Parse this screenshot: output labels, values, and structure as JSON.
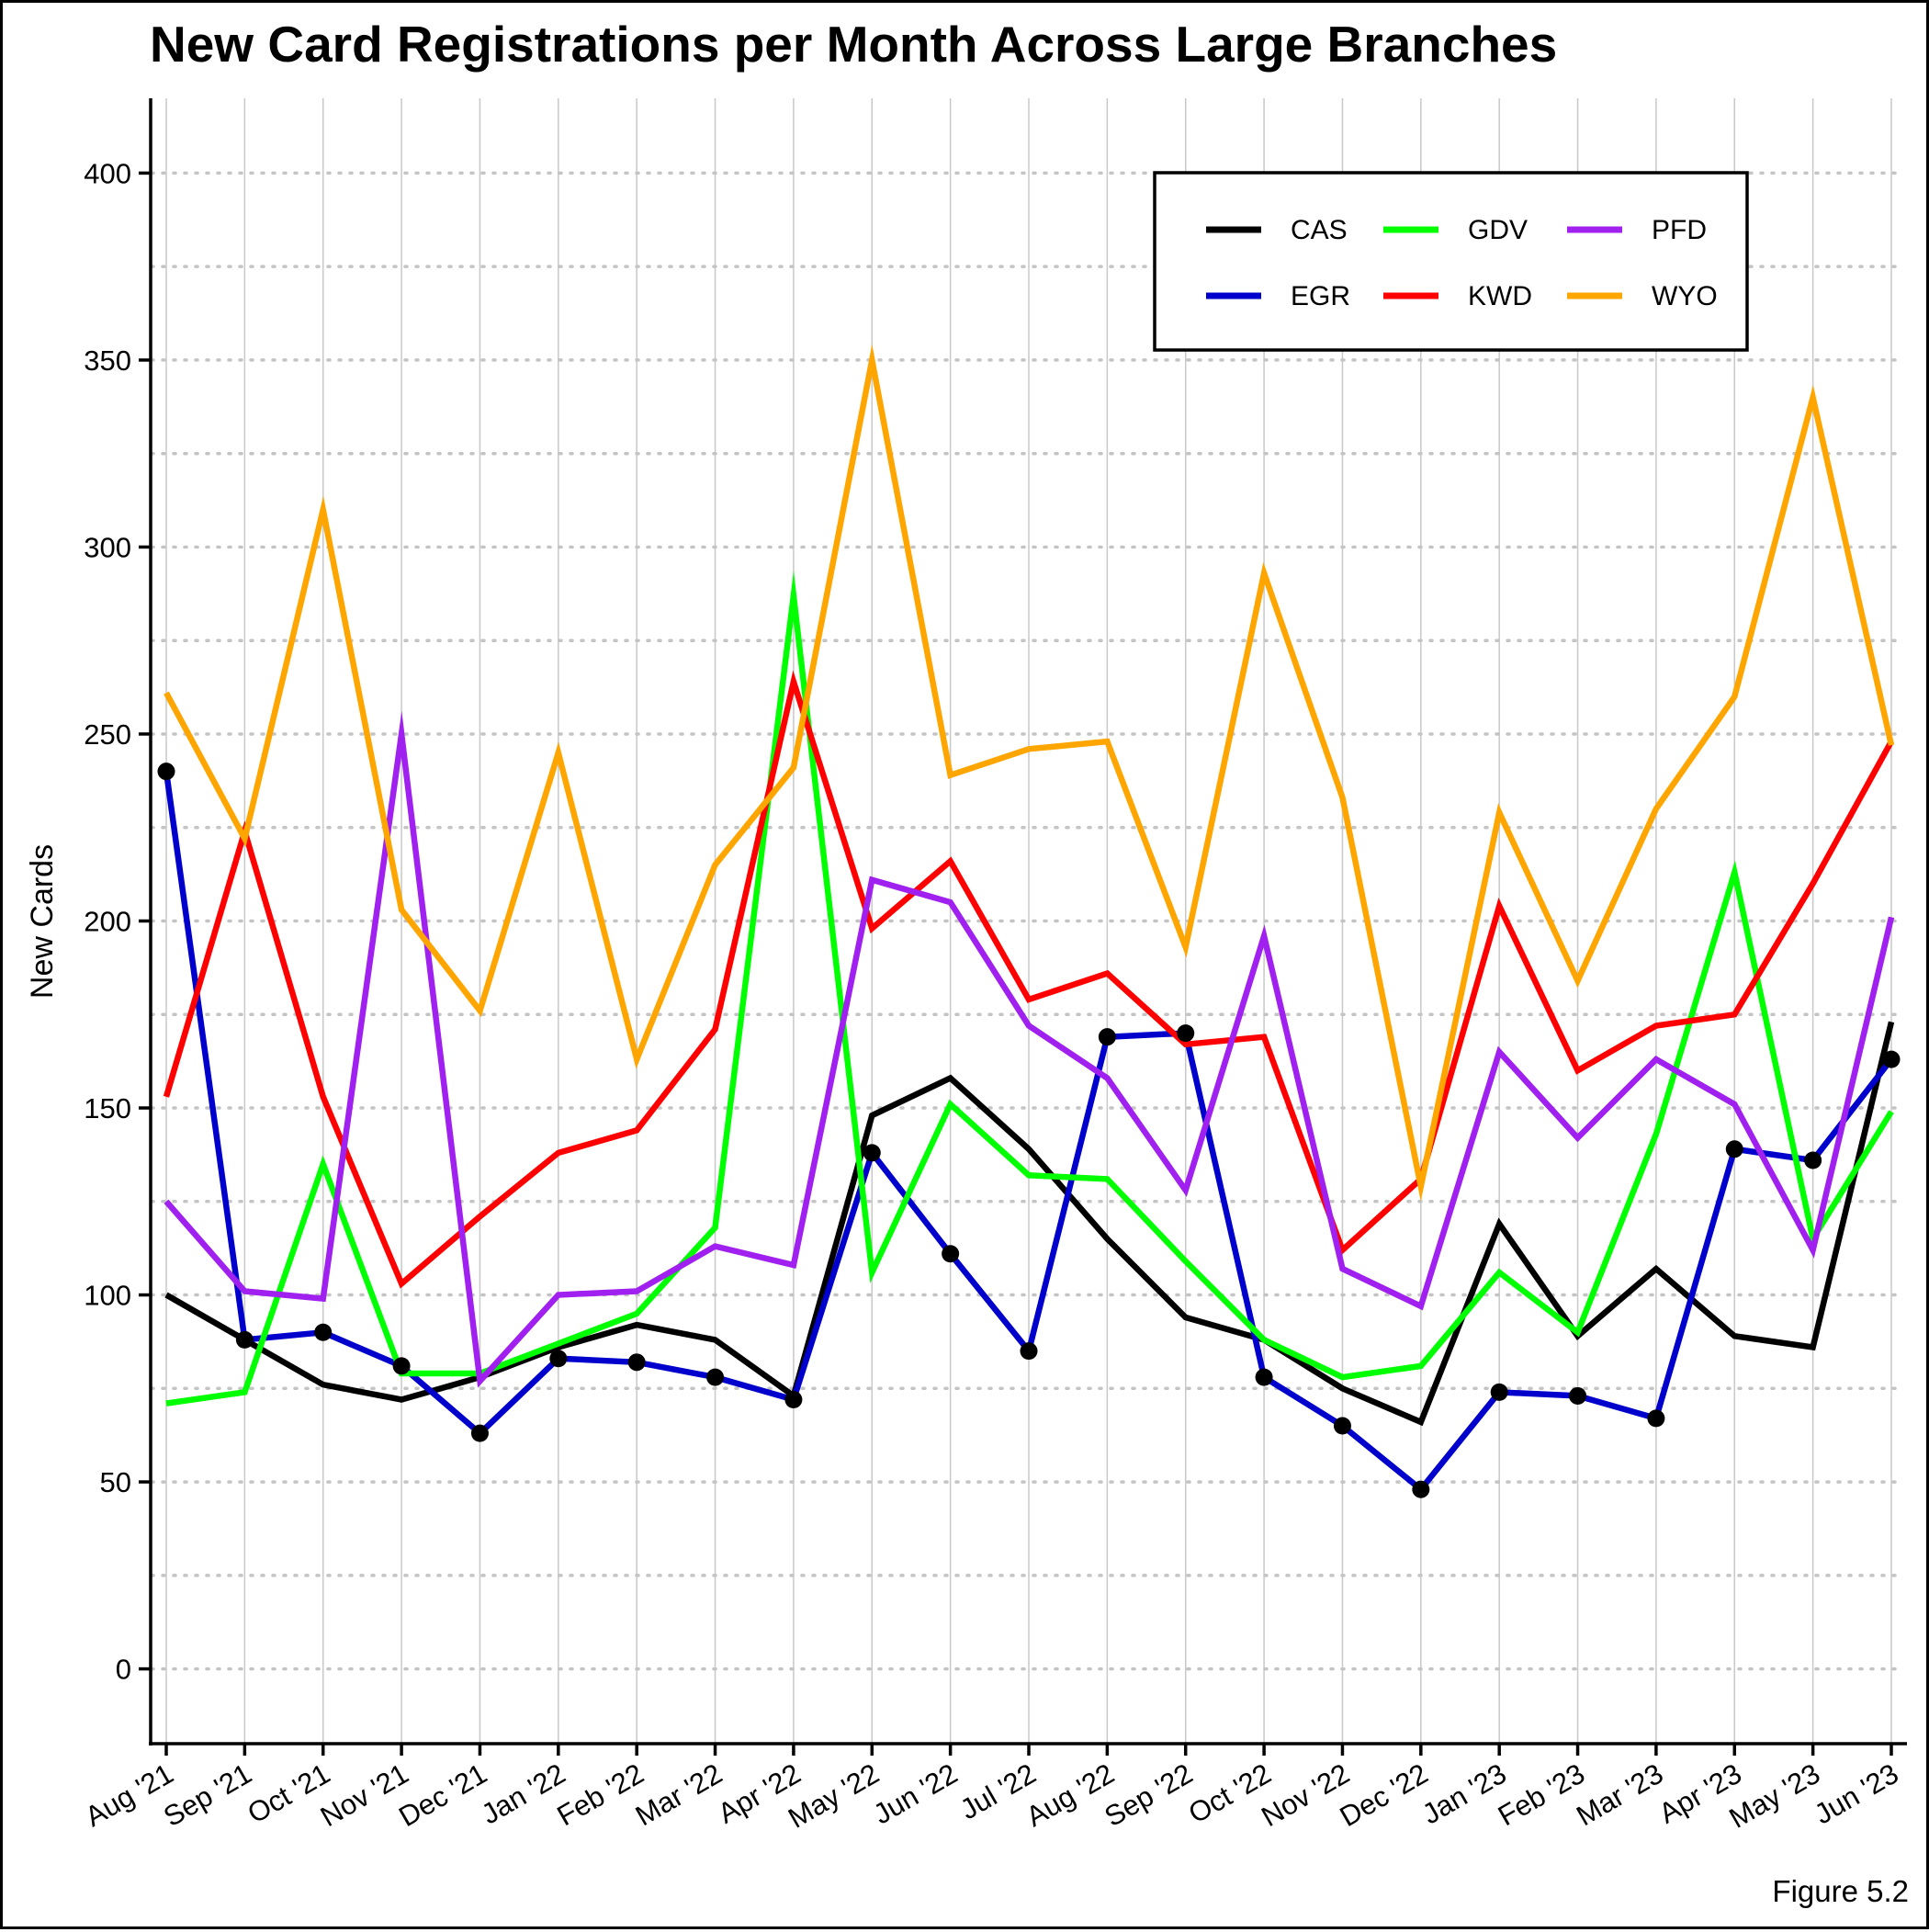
{
  "chart_data": {
    "type": "line",
    "title": "New Card Registrations per Month Across Large Branches",
    "xlabel": "",
    "ylabel": "New Cards",
    "caption": "Figure 5.2",
    "ylim": [
      -20,
      420
    ],
    "yticks": [
      0,
      50,
      100,
      150,
      200,
      250,
      300,
      350,
      400
    ],
    "ytick_labels": [
      "0",
      "50",
      "100",
      "150",
      "200",
      "250",
      "300",
      "350",
      "400"
    ],
    "grid": true,
    "legend_position": "top-right",
    "categories": [
      "Aug '21",
      "Sep '21",
      "Oct '21",
      "Nov '21",
      "Dec '21",
      "Jan '22",
      "Feb '22",
      "Mar '22",
      "Apr '22",
      "May '22",
      "Jun '22",
      "Jul '22",
      "Aug '22",
      "Sep '22",
      "Oct '22",
      "Nov '22",
      "Dec '22",
      "Jan '23",
      "Feb '23",
      "Mar '23",
      "Apr '23",
      "May '23",
      "Jun '23"
    ],
    "series": [
      {
        "name": "CAS",
        "color": "#000000",
        "markers": false,
        "values": [
          100,
          88,
          76,
          72,
          78,
          86,
          92,
          88,
          73,
          148,
          158,
          139,
          115,
          94,
          88,
          75,
          66,
          119,
          89,
          107,
          89,
          86,
          173
        ]
      },
      {
        "name": "EGR",
        "color": "#0000cd",
        "markers": true,
        "values": [
          240,
          88,
          90,
          81,
          63,
          83,
          82,
          78,
          72,
          138,
          111,
          85,
          169,
          170,
          78,
          65,
          48,
          74,
          73,
          67,
          139,
          136,
          163
        ]
      },
      {
        "name": "GDV",
        "color": "#00ff00",
        "markers": false,
        "values": [
          71,
          74,
          135,
          79,
          79,
          87,
          95,
          118,
          287,
          106,
          151,
          132,
          131,
          109,
          88,
          78,
          81,
          106,
          90,
          143,
          213,
          115,
          149
        ]
      },
      {
        "name": "KWD",
        "color": "#ff0000",
        "markers": false,
        "values": [
          153,
          224,
          153,
          103,
          121,
          138,
          144,
          171,
          264,
          198,
          216,
          179,
          186,
          167,
          169,
          112,
          131,
          204,
          160,
          172,
          175,
          210,
          248
        ]
      },
      {
        "name": "PFD",
        "color": "#a020f0",
        "markers": false,
        "values": [
          125,
          101,
          99,
          250,
          77,
          100,
          101,
          113,
          108,
          211,
          205,
          172,
          158,
          128,
          196,
          107,
          97,
          165,
          142,
          163,
          151,
          112,
          201
        ]
      },
      {
        "name": "WYO",
        "color": "#ffa500",
        "markers": false,
        "values": [
          261,
          222,
          310,
          203,
          176,
          245,
          163,
          215,
          241,
          350,
          239,
          246,
          248,
          193,
          293,
          233,
          129,
          229,
          184,
          230,
          260,
          340,
          247
        ]
      }
    ]
  }
}
